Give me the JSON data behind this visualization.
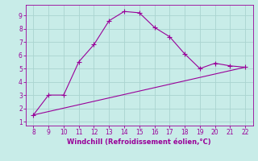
{
  "line1_x": [
    8,
    9,
    10,
    11,
    12,
    13,
    14,
    15,
    16,
    17,
    18,
    19,
    20,
    21,
    22
  ],
  "line1_y": [
    1.5,
    3.0,
    3.0,
    5.5,
    6.8,
    8.6,
    9.3,
    9.2,
    8.1,
    7.4,
    6.1,
    5.0,
    5.4,
    5.2,
    5.1
  ],
  "line2_x": [
    8,
    22
  ],
  "line2_y": [
    1.5,
    5.1
  ],
  "line_color": "#990099",
  "bg_color": "#c8ece8",
  "grid_color": "#b0d8d4",
  "xlabel": "Windchill (Refroidissement éolien,°C)",
  "xlim": [
    7.5,
    22.5
  ],
  "ylim": [
    0.7,
    9.8
  ],
  "xticks": [
    8,
    9,
    10,
    11,
    12,
    13,
    14,
    15,
    16,
    17,
    18,
    19,
    20,
    21,
    22
  ],
  "yticks": [
    1,
    2,
    3,
    4,
    5,
    6,
    7,
    8,
    9
  ],
  "tick_color": "#990099",
  "label_color": "#990099",
  "marker": "+",
  "markersize": 4,
  "linewidth": 0.8,
  "tick_fontsize": 5.5,
  "xlabel_fontsize": 6
}
